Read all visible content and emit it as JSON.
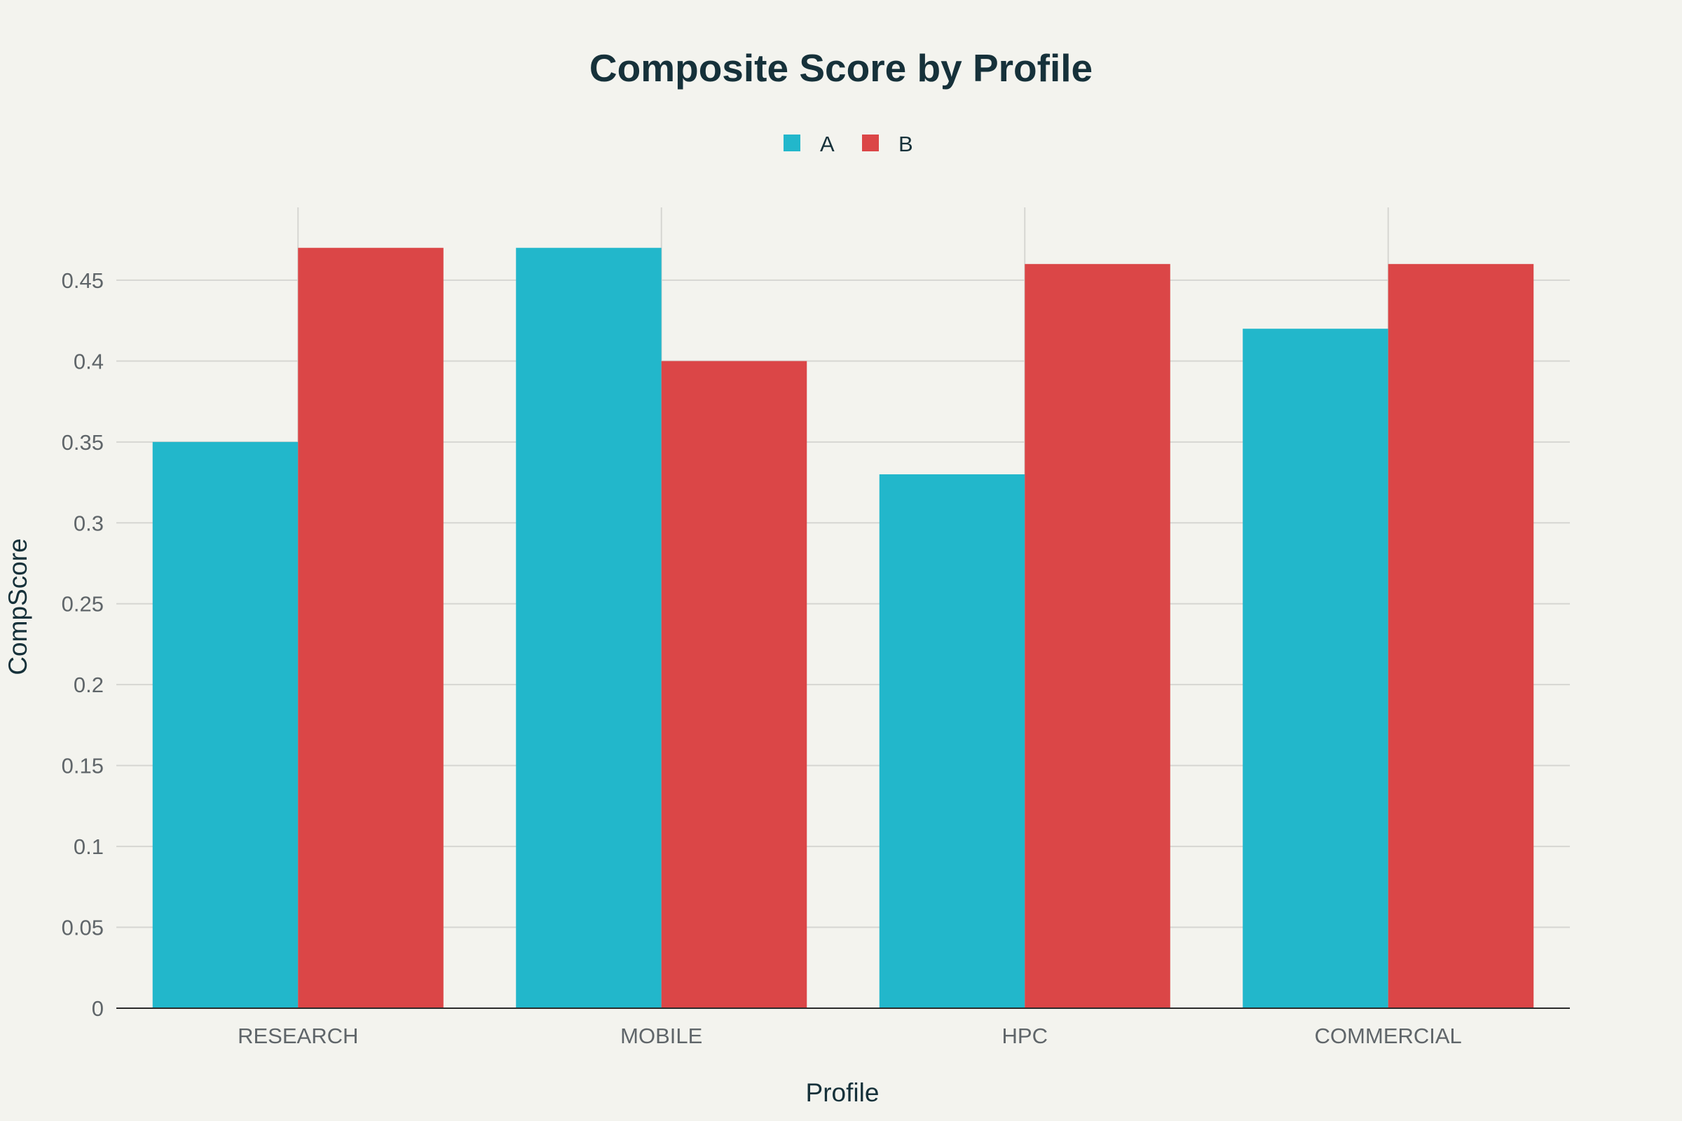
{
  "chart_data": {
    "type": "bar",
    "title": "Composite Score by Profile",
    "xlabel": "Profile",
    "ylabel": "CompScore",
    "categories": [
      "RESEARCH",
      "MOBILE",
      "HPC",
      "COMMERCIAL"
    ],
    "series": [
      {
        "name": "A",
        "color": "#22b7cb",
        "values": [
          0.35,
          0.47,
          0.33,
          0.42
        ]
      },
      {
        "name": "B",
        "color": "#db4647",
        "values": [
          0.47,
          0.4,
          0.46,
          0.46
        ]
      }
    ],
    "ylim": [
      0,
      0.495
    ],
    "yticks": [
      0,
      0.05,
      0.1,
      0.15,
      0.2,
      0.25,
      0.3,
      0.35,
      0.4,
      0.45
    ],
    "ytick_labels": [
      "0",
      "0.05",
      "0.1",
      "0.15",
      "0.2",
      "0.25",
      "0.3",
      "0.35",
      "0.4",
      "0.45"
    ],
    "grid": true,
    "legend_position": "top-center"
  }
}
